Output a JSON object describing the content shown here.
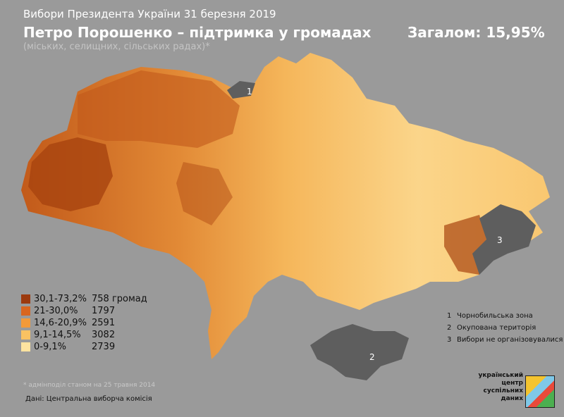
{
  "header": {
    "supertitle": "Вибори Президента України 31 березня 2019",
    "title": "Петро Порошенко – підтримка у громадах",
    "subtitle": "(міських, селищних, сільських радах)*",
    "total": "Загалом: 15,95%"
  },
  "legend": [
    {
      "range": "30,1-73,2%",
      "count": "758 громад",
      "color": "#9c3a0e"
    },
    {
      "range": "21-30,0%",
      "count": "1797",
      "color": "#d9661f"
    },
    {
      "range": "14,6-20,9%",
      "count": "2591",
      "color": "#f29a3a"
    },
    {
      "range": "9,1-14,5%",
      "count": "3082",
      "color": "#f9c262"
    },
    {
      "range": "0-9,1%",
      "count": "2739",
      "color": "#fde3a0"
    }
  ],
  "zones": [
    {
      "num": "1",
      "label": "Чорнобильська зона"
    },
    {
      "num": "2",
      "label": "Окупована територія"
    },
    {
      "num": "3",
      "label": "Вибори не організовувалися"
    }
  ],
  "footnote": "* адмінподіл станом на 25 травня 2014",
  "source": "Дані: Центральна виборча комісія",
  "logo": "український центр суспільних даних",
  "excluded_color": "#5e5e5e"
}
